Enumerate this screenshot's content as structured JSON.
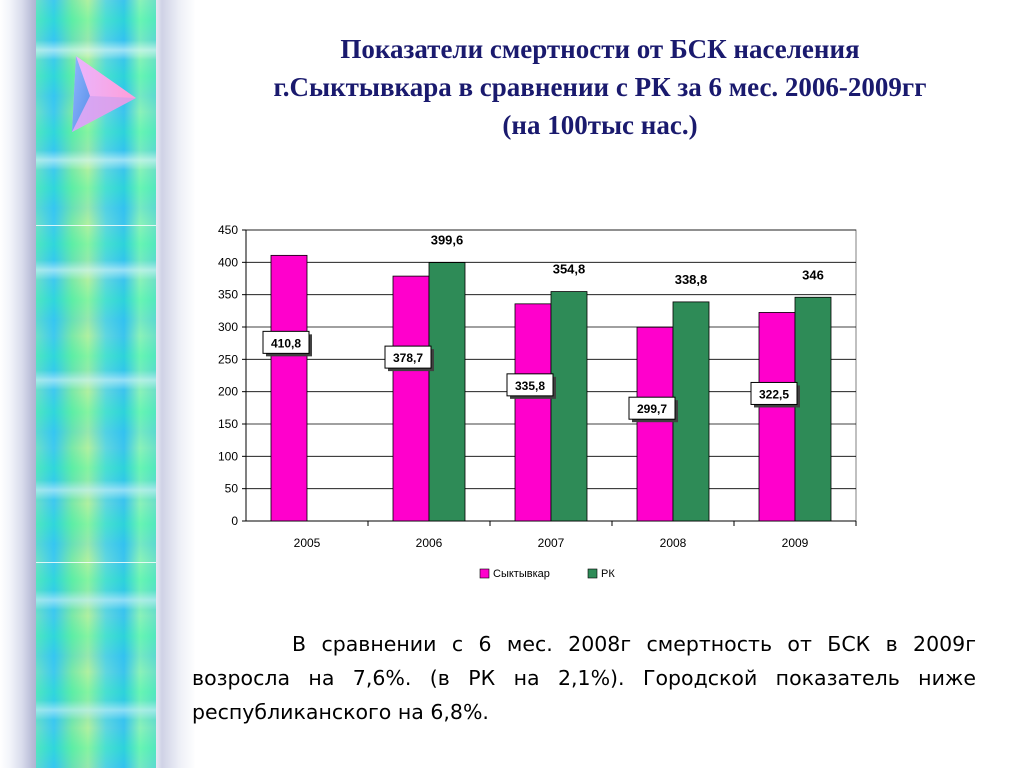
{
  "slide": {
    "title_lines": [
      "Показатели смертности от БСК населения",
      "г.Сыктывкара в сравнении с РК за 6 мес. 2006-2009гг",
      "(на 100тыс нас.)"
    ],
    "summary": "В сравнении с 6 мес. 2008г смертность от БСК в 2009г возросла на 7,6%. (в РК на 2,1%). Городской показатель ниже республиканского на 6,8%."
  },
  "decor": {
    "left_band_icon": "triangle-logo-icon"
  },
  "chart_data": {
    "type": "bar",
    "categories": [
      "2005",
      "2006",
      "2007",
      "2008",
      "2009"
    ],
    "series": [
      {
        "name": "Сыктывкар",
        "color": "#ff00cc",
        "values": [
          410.8,
          378.7,
          335.8,
          299.7,
          322.5
        ],
        "labels": [
          "410,8",
          "378,7",
          "335,8",
          "299,7",
          "322,5"
        ]
      },
      {
        "name": "РК",
        "color": "#2e8b57",
        "values": [
          null,
          399.6,
          354.8,
          338.8,
          346
        ],
        "labels": [
          "",
          "399,6",
          "354,8",
          "338,8",
          "346"
        ]
      }
    ],
    "ylim": [
      0,
      450
    ],
    "yticks": [
      "0",
      "50",
      "100",
      "150",
      "200",
      "250",
      "300",
      "350",
      "400",
      "450"
    ],
    "grid": true,
    "legend_position": "bottom"
  }
}
